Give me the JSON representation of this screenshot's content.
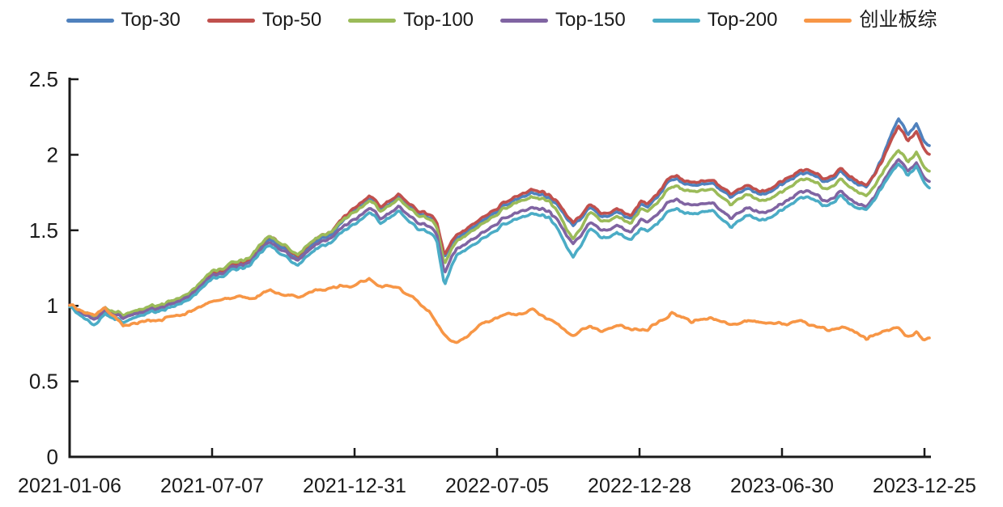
{
  "chart_data": {
    "type": "line",
    "title": "",
    "grid": "off",
    "legend_position": "top",
    "colors": {
      "axis": "#1a1a1a",
      "text": "#1a1a1a",
      "background": "#ffffff"
    },
    "x_axis": {
      "tick_labels": [
        "2021-01-06",
        "2021-07-07",
        "2021-12-31",
        "2022-07-05",
        "2022-12-28",
        "2023-06-30",
        "2023-12-25"
      ]
    },
    "y_axis": {
      "range": [
        0,
        2.5
      ],
      "ticks": [
        0,
        0.5,
        1,
        1.5,
        2,
        2.5
      ],
      "tick_labels": [
        "0",
        "0.5",
        "1",
        "1.5",
        "2",
        "2.5"
      ]
    },
    "keyframe_t": [
      0.0,
      0.013,
      0.029,
      0.041,
      0.062,
      0.084,
      0.107,
      0.136,
      0.167,
      0.187,
      0.211,
      0.233,
      0.249,
      0.265,
      0.282,
      0.305,
      0.333,
      0.349,
      0.362,
      0.383,
      0.404,
      0.418,
      0.427,
      0.436,
      0.451,
      0.475,
      0.499,
      0.522,
      0.538,
      0.559,
      0.585,
      0.606,
      0.62,
      0.637,
      0.653,
      0.664,
      0.672,
      0.7,
      0.724,
      0.748,
      0.769,
      0.785,
      0.804,
      0.829,
      0.851,
      0.87,
      0.881,
      0.898,
      0.915,
      0.927,
      0.945,
      0.964,
      0.975,
      0.985,
      0.993,
      1.0
    ],
    "series": [
      {
        "id": "top-30",
        "name": "Top-30",
        "color": "#4F81BD",
        "noise": "market",
        "values": [
          1.0,
          0.96,
          0.9,
          0.98,
          0.92,
          0.96,
          0.99,
          1.05,
          1.21,
          1.25,
          1.31,
          1.45,
          1.38,
          1.31,
          1.41,
          1.48,
          1.64,
          1.71,
          1.64,
          1.72,
          1.62,
          1.58,
          1.55,
          1.33,
          1.45,
          1.54,
          1.64,
          1.71,
          1.75,
          1.72,
          1.53,
          1.65,
          1.59,
          1.62,
          1.58,
          1.67,
          1.65,
          1.84,
          1.8,
          1.81,
          1.72,
          1.78,
          1.73,
          1.8,
          1.88,
          1.85,
          1.82,
          1.88,
          1.82,
          1.77,
          1.98,
          2.24,
          2.14,
          2.2,
          2.09,
          2.06
        ]
      },
      {
        "id": "top-50",
        "name": "Top-50",
        "color": "#C0504D",
        "noise": "market",
        "values": [
          1.0,
          0.97,
          0.92,
          0.99,
          0.93,
          0.97,
          1.0,
          1.06,
          1.22,
          1.26,
          1.32,
          1.47,
          1.4,
          1.33,
          1.43,
          1.5,
          1.66,
          1.73,
          1.66,
          1.74,
          1.64,
          1.6,
          1.57,
          1.34,
          1.47,
          1.56,
          1.66,
          1.73,
          1.77,
          1.74,
          1.55,
          1.67,
          1.61,
          1.64,
          1.6,
          1.69,
          1.67,
          1.86,
          1.82,
          1.83,
          1.74,
          1.8,
          1.75,
          1.82,
          1.9,
          1.87,
          1.84,
          1.9,
          1.84,
          1.78,
          1.96,
          2.19,
          2.1,
          2.15,
          2.04,
          2.0
        ]
      },
      {
        "id": "top-100",
        "name": "Top-100",
        "color": "#9BBB59",
        "noise": "market",
        "values": [
          1.0,
          0.97,
          0.92,
          0.99,
          0.94,
          0.98,
          1.01,
          1.07,
          1.23,
          1.27,
          1.33,
          1.47,
          1.4,
          1.34,
          1.43,
          1.5,
          1.63,
          1.7,
          1.63,
          1.71,
          1.61,
          1.57,
          1.54,
          1.28,
          1.43,
          1.52,
          1.62,
          1.69,
          1.72,
          1.7,
          1.44,
          1.62,
          1.56,
          1.59,
          1.55,
          1.64,
          1.62,
          1.79,
          1.76,
          1.77,
          1.67,
          1.74,
          1.69,
          1.75,
          1.84,
          1.81,
          1.77,
          1.83,
          1.77,
          1.71,
          1.88,
          2.03,
          1.96,
          2.01,
          1.92,
          1.89
        ]
      },
      {
        "id": "top-150",
        "name": "Top-150",
        "color": "#8064A2",
        "noise": "market",
        "values": [
          1.0,
          0.96,
          0.9,
          0.97,
          0.92,
          0.96,
          0.99,
          1.05,
          1.2,
          1.24,
          1.3,
          1.43,
          1.36,
          1.3,
          1.39,
          1.46,
          1.58,
          1.65,
          1.58,
          1.66,
          1.56,
          1.52,
          1.49,
          1.22,
          1.38,
          1.46,
          1.56,
          1.62,
          1.65,
          1.63,
          1.41,
          1.55,
          1.5,
          1.53,
          1.49,
          1.57,
          1.55,
          1.7,
          1.67,
          1.68,
          1.58,
          1.65,
          1.61,
          1.67,
          1.76,
          1.73,
          1.69,
          1.75,
          1.69,
          1.64,
          1.81,
          1.97,
          1.9,
          1.94,
          1.85,
          1.82
        ]
      },
      {
        "id": "top-200",
        "name": "Top-200",
        "color": "#4BACC6",
        "noise": "market",
        "values": [
          0.99,
          0.94,
          0.86,
          0.95,
          0.89,
          0.94,
          0.97,
          1.03,
          1.18,
          1.22,
          1.28,
          1.41,
          1.33,
          1.27,
          1.36,
          1.43,
          1.55,
          1.62,
          1.55,
          1.63,
          1.52,
          1.48,
          1.45,
          1.14,
          1.34,
          1.42,
          1.52,
          1.58,
          1.61,
          1.59,
          1.32,
          1.51,
          1.45,
          1.48,
          1.44,
          1.51,
          1.49,
          1.64,
          1.61,
          1.63,
          1.52,
          1.6,
          1.56,
          1.63,
          1.72,
          1.69,
          1.66,
          1.72,
          1.66,
          1.62,
          1.79,
          1.94,
          1.87,
          1.92,
          1.82,
          1.78
        ]
      },
      {
        "id": "chuangyeban-index",
        "name": "创业板综",
        "color": "#F79646",
        "noise": "independent",
        "values": [
          1.0,
          0.97,
          0.93,
          0.99,
          0.87,
          0.89,
          0.91,
          0.95,
          1.03,
          1.06,
          1.05,
          1.1,
          1.07,
          1.06,
          1.09,
          1.12,
          1.14,
          1.18,
          1.13,
          1.12,
          1.03,
          0.96,
          0.88,
          0.81,
          0.745,
          0.86,
          0.93,
          0.95,
          0.97,
          0.91,
          0.8,
          0.87,
          0.83,
          0.88,
          0.84,
          0.85,
          0.84,
          0.95,
          0.9,
          0.92,
          0.87,
          0.9,
          0.89,
          0.88,
          0.9,
          0.86,
          0.84,
          0.86,
          0.83,
          0.78,
          0.83,
          0.85,
          0.8,
          0.82,
          0.77,
          0.79
        ]
      }
    ]
  }
}
